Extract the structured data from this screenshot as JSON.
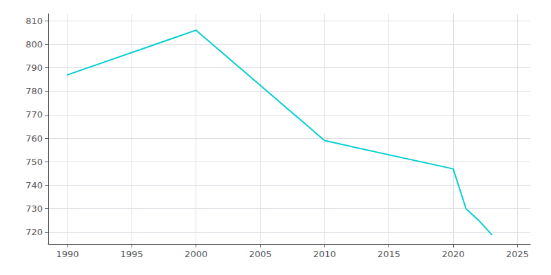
{
  "chart_data": {
    "type": "line",
    "x": [
      1990,
      2000,
      2010,
      2020,
      2021,
      2022,
      2023
    ],
    "values": [
      787,
      806,
      759,
      747,
      730,
      725,
      719
    ],
    "color": "#00CED1",
    "xlim": [
      1988.5,
      2026
    ],
    "xticks": [
      1990,
      1995,
      2000,
      2005,
      2010,
      2015,
      2020,
      2025
    ],
    "ylim": [
      715,
      813
    ],
    "yticks": [
      720,
      730,
      740,
      750,
      760,
      770,
      780,
      790,
      800,
      810
    ],
    "grid": true
  }
}
